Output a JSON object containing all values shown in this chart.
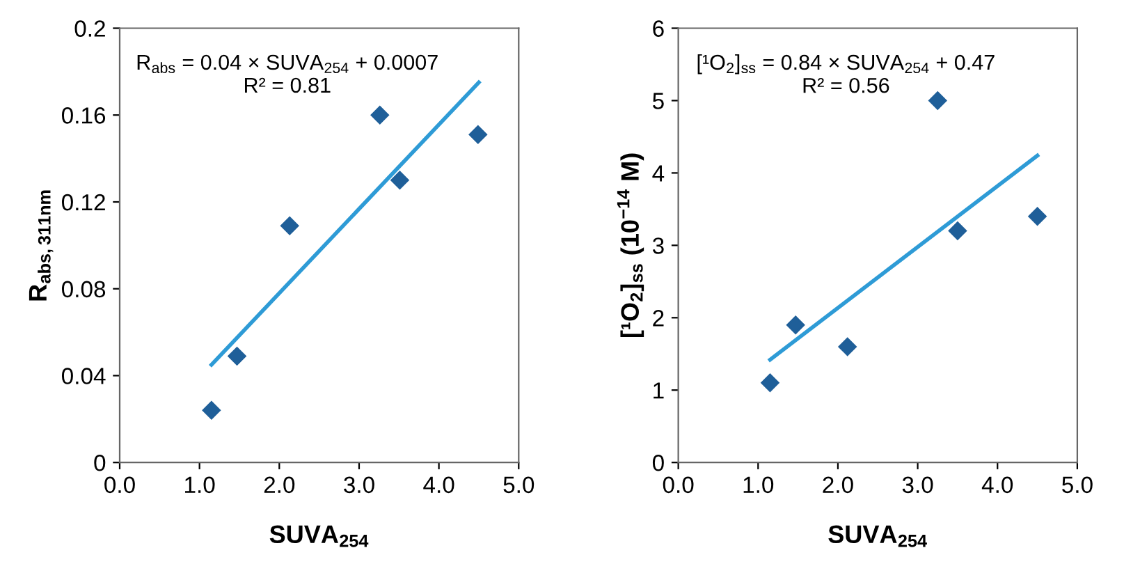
{
  "chart_data": [
    {
      "type": "scatter",
      "xlabel": "SUVA$_{254}$",
      "ylabel": "R$_{abs,311nm}$",
      "marker": "diamond",
      "grid": false,
      "legend": false,
      "annotations": [
        "R$_{abs}$ = 0.04 × SUVA$_{254}$ + 0.0007\nR² = 0.81"
      ],
      "xlim": [
        0,
        5
      ],
      "xticks": [
        {
          "value": 0,
          "label": "0.0"
        },
        {
          "value": 1,
          "label": "1.0"
        },
        {
          "value": 2,
          "label": "2.0"
        },
        {
          "value": 3,
          "label": "3.0"
        },
        {
          "value": 4,
          "label": "4.0"
        },
        {
          "value": 5,
          "label": "5.0"
        }
      ],
      "ylim": [
        0,
        0.2
      ],
      "yticks": [
        0,
        0.04,
        0.08,
        0.12,
        0.16,
        0.2
      ],
      "series": [
        {
          "color": "#1f5f99",
          "x": [
            1.15,
            1.47,
            2.13,
            3.26,
            3.51,
            4.49
          ],
          "values": [
            0.024,
            0.049,
            0.109,
            0.16,
            0.13,
            0.151
          ]
        },
        {
          "type": "line",
          "color": "#2e9bd6",
          "marker": "none",
          "x": [
            1.15,
            4.5
          ],
          "values": [
            0.045,
            0.175
          ]
        }
      ]
    },
    {
      "type": "scatter",
      "xlabel": "SUVA$_{254}$",
      "ylabel": "[¹O$_{2}$]$_{ss}$ (10$^{−14}$ M)",
      "marker": "diamond",
      "grid": false,
      "legend": false,
      "annotations": [
        "[¹O$_{2}$]$_{ss}$ = 0.84 × SUVA$_{254}$ + 0.47\nR² = 0.56"
      ],
      "xlim": [
        0,
        5
      ],
      "xticks": [
        {
          "value": 0,
          "label": "0.0"
        },
        {
          "value": 1,
          "label": "1.0"
        },
        {
          "value": 2,
          "label": "2.0"
        },
        {
          "value": 3,
          "label": "3.0"
        },
        {
          "value": 4,
          "label": "4.0"
        },
        {
          "value": 5,
          "label": "5.0"
        }
      ],
      "ylim": [
        0,
        6
      ],
      "yticks": [
        0,
        1,
        2,
        3,
        4,
        5,
        6
      ],
      "series": [
        {
          "color": "#1f5f99",
          "x": [
            1.15,
            1.47,
            2.12,
            3.25,
            3.5,
            4.5
          ],
          "values": [
            1.1,
            1.9,
            1.6,
            5.0,
            3.2,
            3.4
          ]
        },
        {
          "type": "line",
          "color": "#2e9bd6",
          "marker": "none",
          "x": [
            1.15,
            4.5
          ],
          "values": [
            1.42,
            4.24
          ]
        }
      ]
    }
  ]
}
